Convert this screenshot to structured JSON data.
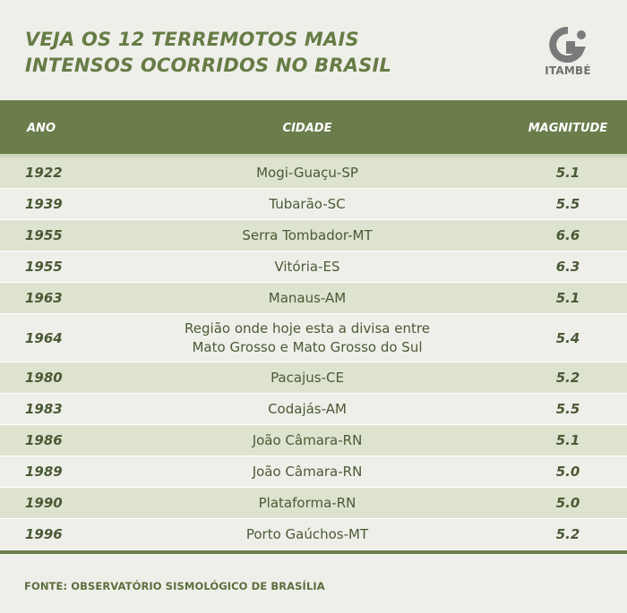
{
  "header": {
    "title_line1": "VEJA OS 12 TERREMOTOS MAIS",
    "title_line2": "INTENSOS OCORRIDOS NO BRASIL",
    "logo_text": "ITAMBÉ",
    "logo_icon": "itambe-logo-icon"
  },
  "table": {
    "columns": {
      "year": "ANO",
      "city": "CIDADE",
      "magnitude": "MAGNITUDE"
    },
    "rows": [
      {
        "year": "1922",
        "city": "Mogi-Guaçu-SP",
        "magnitude": "5.1"
      },
      {
        "year": "1939",
        "city": "Tubarão-SC",
        "magnitude": "5.5"
      },
      {
        "year": "1955",
        "city": "Serra Tombador-MT",
        "magnitude": "6.6"
      },
      {
        "year": "1955",
        "city": "Vitória-ES",
        "magnitude": "6.3"
      },
      {
        "year": "1963",
        "city": "Manaus-AM",
        "magnitude": "5.1"
      },
      {
        "year": "1964",
        "city_line1": "Região onde hoje esta a divisa entre",
        "city_line2": "Mato Grosso e Mato Grosso do Sul",
        "magnitude": "5.4"
      },
      {
        "year": "1980",
        "city": "Pacajus-CE",
        "magnitude": "5.2"
      },
      {
        "year": "1983",
        "city": "Codajás-AM",
        "magnitude": "5.5"
      },
      {
        "year": "1986",
        "city": "João Câmara-RN",
        "magnitude": "5.1"
      },
      {
        "year": "1989",
        "city": "João Câmara-RN",
        "magnitude": "5.0"
      },
      {
        "year": "1990",
        "city": "Plataforma-RN",
        "magnitude": "5.0"
      },
      {
        "year": "1996",
        "city": "Porto Gaúchos-MT",
        "magnitude": "5.2"
      }
    ]
  },
  "footer": {
    "source": "FONTE: OBSERVATÓRIO SISMOLÓGICO DE BRASÍLIA"
  },
  "colors": {
    "background": "#efefea",
    "header_bar": "#6b7d4b",
    "row_alt": "#dde3cf",
    "title": "#667c45",
    "text": "#4a5a35"
  }
}
